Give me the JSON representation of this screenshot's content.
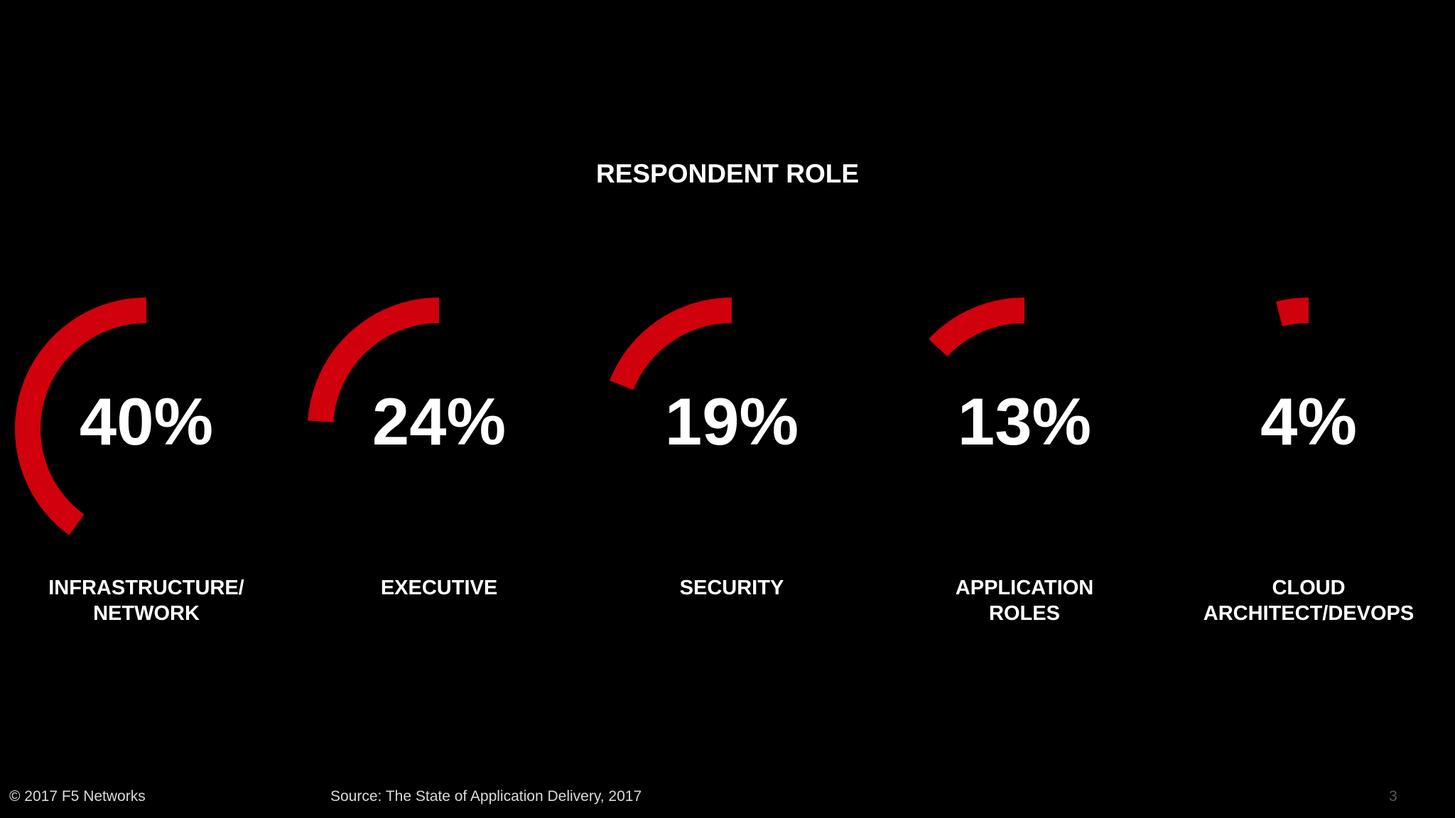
{
  "slide": {
    "title": "RESPONDENT ROLE",
    "footer_copyright": "© 2017 F5 Networks",
    "footer_source": "Source: The State of Application Delivery, 2017",
    "page_number": "3"
  },
  "colors": {
    "background": "#000000",
    "arc": "#d0000c",
    "text": "#ffffff"
  },
  "chart_data": {
    "type": "radial-bar",
    "title": "RESPONDENT ROLE",
    "unit": "%",
    "categories": [
      "INFRASTRUCTURE/\nNETWORK",
      "EXECUTIVE",
      "SECURITY",
      "APPLICATION\nROLES",
      "CLOUD\nARCHITECT/DEVOPS"
    ],
    "values": [
      40,
      24,
      19,
      13,
      4
    ],
    "value_labels": [
      "40%",
      "24%",
      "19%",
      "13%",
      "4%"
    ],
    "direction": "counter-clockwise from top"
  }
}
